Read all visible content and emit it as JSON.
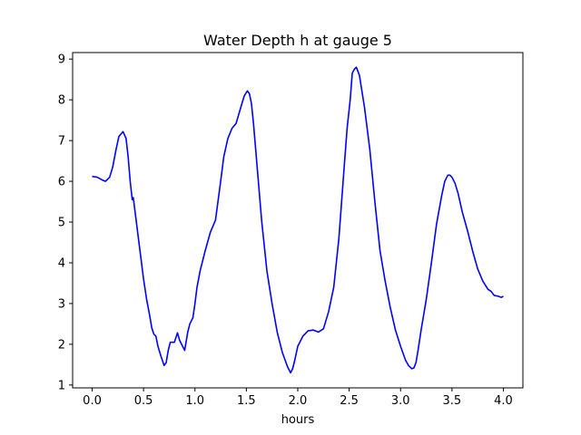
{
  "chart_data": {
    "type": "line",
    "title": "Water Depth h at gauge 5",
    "xlabel": "hours",
    "ylabel": "",
    "xlim": [
      -0.19,
      4.19
    ],
    "ylim": [
      0.93,
      9.16
    ],
    "xticks": [
      0.0,
      0.5,
      1.0,
      1.5,
      2.0,
      2.5,
      3.0,
      3.5,
      4.0
    ],
    "xtick_labels": [
      "0.0",
      "0.5",
      "1.0",
      "1.5",
      "2.0",
      "2.5",
      "3.0",
      "3.5",
      "4.0"
    ],
    "yticks": [
      1,
      2,
      3,
      4,
      5,
      6,
      7,
      8,
      9
    ],
    "ytick_labels": [
      "1",
      "2",
      "3",
      "4",
      "5",
      "6",
      "7",
      "8",
      "9"
    ],
    "grid": false,
    "series": [
      {
        "color": "#0000ff",
        "x": [
          0.0,
          0.05,
          0.1,
          0.13,
          0.17,
          0.2,
          0.23,
          0.26,
          0.3,
          0.33,
          0.35,
          0.37,
          0.39,
          0.4,
          0.42,
          0.44,
          0.46,
          0.5,
          0.53,
          0.56,
          0.58,
          0.6,
          0.62,
          0.64,
          0.67,
          0.7,
          0.72,
          0.74,
          0.76,
          0.78,
          0.8,
          0.83,
          0.85,
          0.87,
          0.9,
          0.93,
          0.95,
          0.98,
          1.0,
          1.02,
          1.05,
          1.1,
          1.15,
          1.2,
          1.25,
          1.28,
          1.32,
          1.36,
          1.4,
          1.45,
          1.48,
          1.51,
          1.53,
          1.55,
          1.57,
          1.6,
          1.65,
          1.7,
          1.75,
          1.8,
          1.85,
          1.9,
          1.93,
          1.95,
          1.97,
          2.0,
          2.05,
          2.1,
          2.15,
          2.2,
          2.25,
          2.3,
          2.35,
          2.4,
          2.45,
          2.48,
          2.51,
          2.53,
          2.55,
          2.57,
          2.6,
          2.65,
          2.7,
          2.75,
          2.8,
          2.85,
          2.9,
          2.95,
          3.0,
          3.05,
          3.08,
          3.11,
          3.13,
          3.15,
          3.17,
          3.2,
          3.25,
          3.3,
          3.35,
          3.4,
          3.43,
          3.46,
          3.48,
          3.5,
          3.53,
          3.56,
          3.6,
          3.65,
          3.7,
          3.75,
          3.8,
          3.85,
          3.88,
          3.91,
          3.95,
          3.98,
          4.0
        ],
        "y": [
          6.12,
          6.1,
          6.03,
          6.0,
          6.1,
          6.35,
          6.75,
          7.1,
          7.22,
          7.05,
          6.6,
          6.0,
          5.55,
          5.6,
          5.2,
          4.8,
          4.4,
          3.6,
          3.1,
          2.7,
          2.4,
          2.25,
          2.2,
          1.95,
          1.7,
          1.48,
          1.55,
          1.85,
          2.05,
          2.05,
          2.05,
          2.28,
          2.1,
          2.0,
          1.85,
          2.3,
          2.5,
          2.65,
          3.0,
          3.4,
          3.8,
          4.3,
          4.75,
          5.05,
          6.0,
          6.6,
          7.05,
          7.3,
          7.42,
          7.85,
          8.1,
          8.22,
          8.15,
          7.9,
          7.4,
          6.5,
          5.0,
          3.8,
          3.0,
          2.3,
          1.8,
          1.45,
          1.3,
          1.4,
          1.6,
          1.95,
          2.2,
          2.33,
          2.35,
          2.3,
          2.38,
          2.8,
          3.4,
          4.6,
          6.3,
          7.3,
          8.0,
          8.65,
          8.75,
          8.8,
          8.6,
          7.8,
          6.8,
          5.5,
          4.3,
          3.55,
          2.9,
          2.35,
          1.95,
          1.6,
          1.47,
          1.4,
          1.42,
          1.55,
          1.85,
          2.35,
          3.1,
          4.0,
          4.95,
          5.65,
          6.0,
          6.15,
          6.15,
          6.1,
          5.95,
          5.7,
          5.25,
          4.8,
          4.3,
          3.85,
          3.55,
          3.35,
          3.3,
          3.2,
          3.18,
          3.15,
          3.18
        ]
      }
    ]
  }
}
